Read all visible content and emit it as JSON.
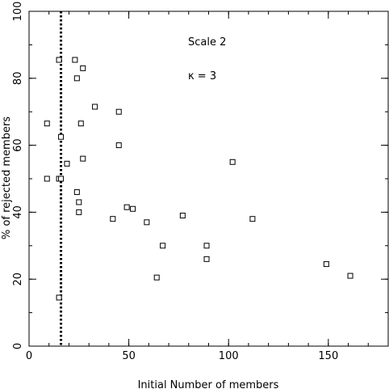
{
  "chart_data": {
    "type": "scatter",
    "title": "",
    "xlabel": "Initial Number of members",
    "ylabel": "% of rejected members",
    "xlim": [
      0,
      180
    ],
    "ylim": [
      0,
      100
    ],
    "x_major_ticks": [
      0,
      50,
      100,
      150
    ],
    "y_major_ticks": [
      0,
      20,
      40,
      60,
      80,
      100
    ],
    "x_minor_step": 10,
    "y_minor_step": 10,
    "grid": false,
    "marker": "open-square",
    "annotations": [
      "Scale 2",
      "κ = 3"
    ],
    "reference_line": {
      "style": "dotted",
      "orientation": "vertical",
      "x": 16
    },
    "points": [
      {
        "x": 9,
        "y": 66.5
      },
      {
        "x": 9,
        "y": 50
      },
      {
        "x": 15,
        "y": 85.5
      },
      {
        "x": 15,
        "y": 50
      },
      {
        "x": 15,
        "y": 14.5
      },
      {
        "x": 16,
        "y": 62.5
      },
      {
        "x": 16,
        "y": 50
      },
      {
        "x": 19,
        "y": 54.5
      },
      {
        "x": 23,
        "y": 85.5
      },
      {
        "x": 24,
        "y": 80
      },
      {
        "x": 24,
        "y": 46
      },
      {
        "x": 25,
        "y": 43
      },
      {
        "x": 25,
        "y": 40
      },
      {
        "x": 26,
        "y": 66.5
      },
      {
        "x": 27,
        "y": 83
      },
      {
        "x": 27,
        "y": 56
      },
      {
        "x": 33,
        "y": 71.5
      },
      {
        "x": 42,
        "y": 38
      },
      {
        "x": 45,
        "y": 70
      },
      {
        "x": 45,
        "y": 60
      },
      {
        "x": 49,
        "y": 41.5
      },
      {
        "x": 52,
        "y": 41
      },
      {
        "x": 59,
        "y": 37
      },
      {
        "x": 64,
        "y": 20.5
      },
      {
        "x": 67,
        "y": 30
      },
      {
        "x": 77,
        "y": 39
      },
      {
        "x": 89,
        "y": 30
      },
      {
        "x": 89,
        "y": 26
      },
      {
        "x": 102,
        "y": 55
      },
      {
        "x": 112,
        "y": 38
      },
      {
        "x": 149,
        "y": 24.5
      },
      {
        "x": 161,
        "y": 21
      }
    ]
  }
}
